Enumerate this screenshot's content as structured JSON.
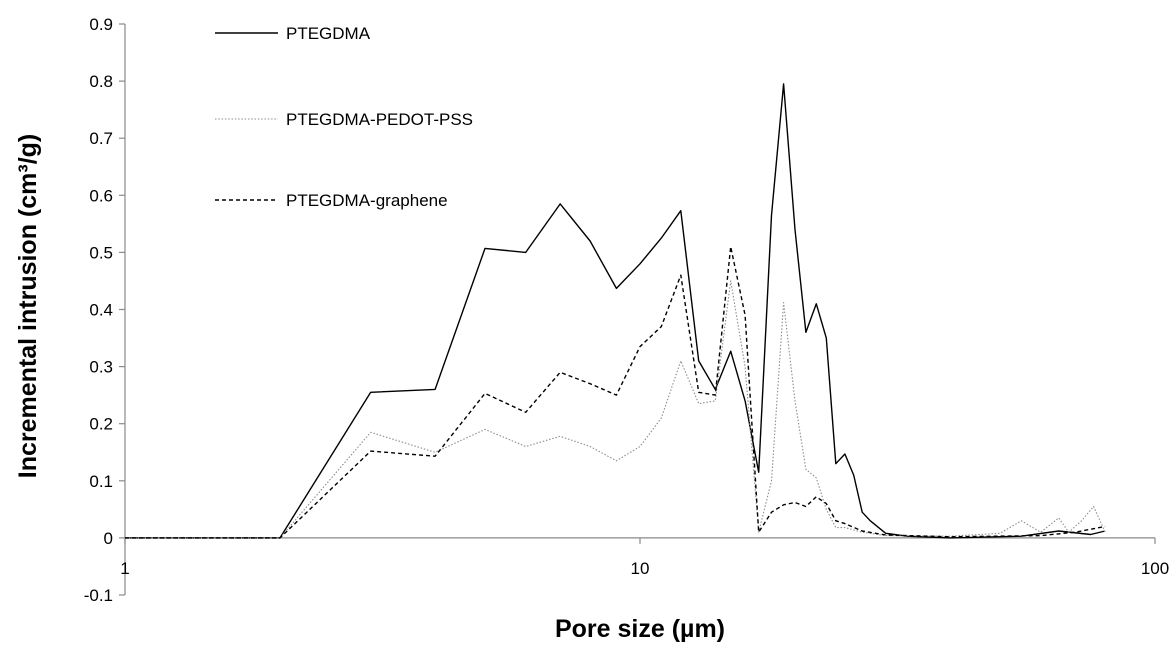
{
  "chart_data": {
    "type": "line",
    "xscale": "log",
    "xlim": [
      1,
      100
    ],
    "ylim": [
      -0.1,
      0.9
    ],
    "ytick_step": 0.1,
    "xticks": [
      1,
      10,
      100
    ],
    "xtick_labels": [
      "1",
      "10",
      "100"
    ],
    "ytick_labels": [
      "-0.1",
      "0",
      "0.1",
      "0.2",
      "0.3",
      "0.4",
      "0.5",
      "0.6",
      "0.7",
      "0.8",
      "0.9"
    ],
    "xlabel": "Pore size (µm)",
    "ylabel": "Incremental intrusion (cm³/g)",
    "grid": false,
    "legend_position": "top-left",
    "series": [
      {
        "name": "PTEGDMA",
        "style": "solid",
        "x": [
          1,
          2,
          3,
          4,
          5,
          6,
          7,
          8,
          9,
          10,
          11,
          12,
          13,
          14,
          15,
          16,
          17,
          18,
          19,
          20,
          21,
          22,
          23,
          24,
          25,
          26,
          27,
          28,
          30,
          33,
          40,
          55,
          65,
          75,
          80
        ],
        "y": [
          0,
          0,
          0.255,
          0.26,
          0.507,
          0.5,
          0.585,
          0.52,
          0.437,
          0.48,
          0.525,
          0.573,
          0.31,
          0.26,
          0.327,
          0.24,
          0.115,
          0.565,
          0.795,
          0.54,
          0.36,
          0.41,
          0.35,
          0.13,
          0.147,
          0.11,
          0.045,
          0.03,
          0.008,
          0.003,
          0,
          0.003,
          0.012,
          0.006,
          0.012
        ]
      },
      {
        "name": "PTEGDMA-PEDOT-PSS",
        "style": "dotted",
        "x": [
          1,
          2,
          3,
          4,
          5,
          6,
          7,
          8,
          9,
          10,
          11,
          12,
          13,
          14,
          15,
          16,
          17,
          18,
          19,
          20,
          21,
          22,
          23,
          24,
          25,
          27,
          30,
          40,
          50,
          55,
          60,
          65,
          68,
          72,
          76,
          80
        ],
        "y": [
          0,
          0,
          0.185,
          0.15,
          0.19,
          0.16,
          0.178,
          0.16,
          0.135,
          0.16,
          0.21,
          0.31,
          0.235,
          0.24,
          0.45,
          0.3,
          0.01,
          0.1,
          0.412,
          0.24,
          0.12,
          0.105,
          0.05,
          0.018,
          0.018,
          0.01,
          0.004,
          0.003,
          0.008,
          0.03,
          0.01,
          0.035,
          0.01,
          0.03,
          0.055,
          0.01
        ]
      },
      {
        "name": "PTEGDMA-graphene",
        "style": "dashed",
        "x": [
          1,
          2,
          3,
          4,
          5,
          6,
          7,
          8,
          9,
          10,
          11,
          12,
          13,
          14,
          15,
          16,
          17,
          18,
          19,
          20,
          21,
          22,
          23,
          24,
          25,
          27,
          30,
          40,
          60,
          70,
          80
        ],
        "y": [
          0,
          0,
          0.152,
          0.143,
          0.253,
          0.22,
          0.29,
          0.27,
          0.25,
          0.335,
          0.37,
          0.46,
          0.255,
          0.25,
          0.51,
          0.39,
          0.01,
          0.045,
          0.058,
          0.062,
          0.055,
          0.072,
          0.06,
          0.03,
          0.025,
          0.012,
          0.005,
          0.002,
          0.004,
          0.01,
          0.02
        ]
      }
    ]
  }
}
